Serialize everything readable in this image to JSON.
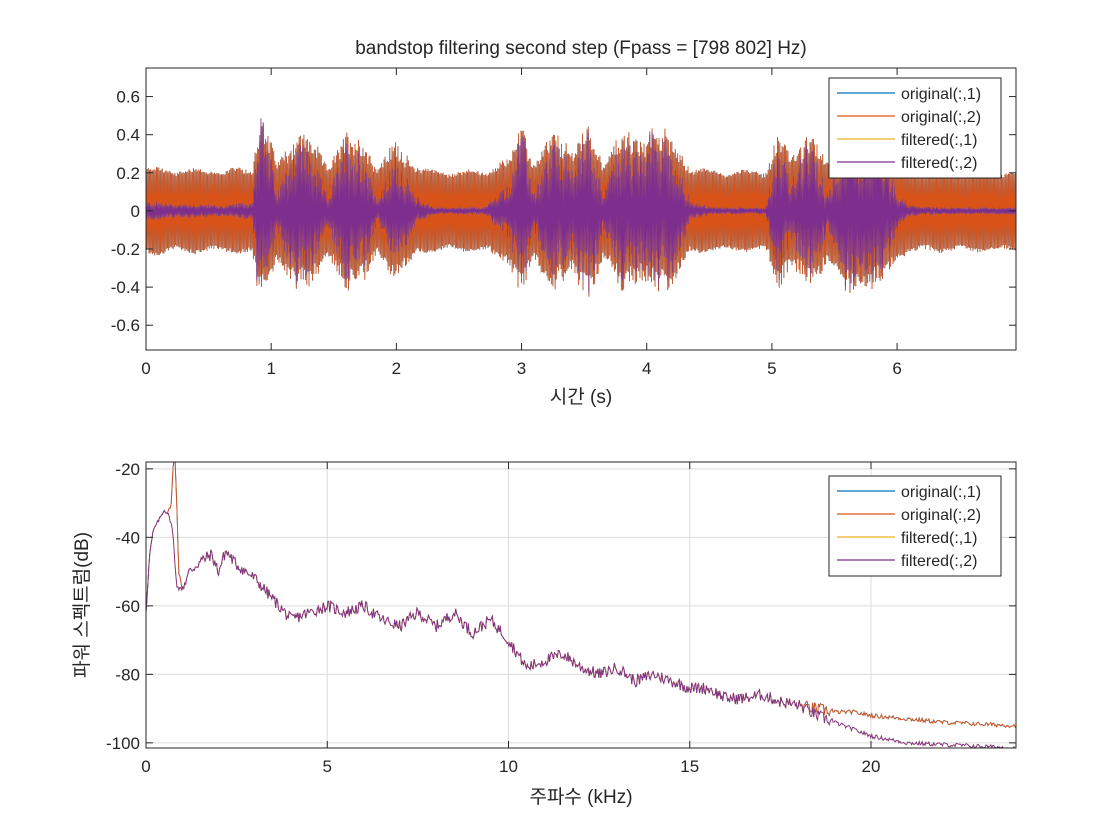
{
  "chart_data": [
    {
      "type": "line",
      "title": "bandstop filtering second step (Fpass = [798 802] Hz)",
      "xlabel": "시간 (s)",
      "ylabel": "",
      "xlim": [
        0,
        6.95
      ],
      "ylim": [
        -0.73,
        0.75
      ],
      "xticks": [
        0,
        1,
        2,
        3,
        4,
        5,
        6
      ],
      "yticks": [
        -0.6,
        -0.4,
        -0.2,
        0,
        0.2,
        0.4,
        0.6
      ],
      "xtick_labels": [
        "0",
        "1",
        "2",
        "3",
        "4",
        "5",
        "6"
      ],
      "ytick_labels": [
        "-0.6",
        "-0.4",
        "-0.2",
        "0",
        "0.2",
        "0.4",
        "0.6"
      ],
      "grid": false,
      "legend_position": "top-right",
      "tone_amplitude": 0.2,
      "series": [
        {
          "name": "original(:,1)",
          "color": "#0072BD"
        },
        {
          "name": "original(:,2)",
          "color": "#D95319"
        },
        {
          "name": "filtered(:,1)",
          "color": "#EDB120"
        },
        {
          "name": "filtered(:,2)",
          "color": "#7E2F8E"
        }
      ],
      "speech_envelope": {
        "t": [
          0,
          0.1,
          0.2,
          0.4,
          0.6,
          0.85,
          0.9,
          0.95,
          1.05,
          1.2,
          1.3,
          1.45,
          1.6,
          1.75,
          1.85,
          2.0,
          2.15,
          2.3,
          2.5,
          2.7,
          2.9,
          3.0,
          3.1,
          3.25,
          3.4,
          3.55,
          3.65,
          3.8,
          3.95,
          4.05,
          4.2,
          4.35,
          4.55,
          4.75,
          4.95,
          5.05,
          5.15,
          5.3,
          5.45,
          5.6,
          5.7,
          5.85,
          6.0,
          6.1,
          6.3,
          6.6,
          6.95
        ],
        "amp": [
          0.05,
          0.05,
          0.04,
          0.04,
          0.03,
          0.05,
          0.55,
          0.45,
          0.1,
          0.4,
          0.35,
          0.08,
          0.38,
          0.3,
          0.06,
          0.3,
          0.08,
          0.02,
          0.02,
          0.02,
          0.15,
          0.45,
          0.1,
          0.38,
          0.25,
          0.45,
          0.1,
          0.4,
          0.3,
          0.45,
          0.35,
          0.05,
          0.02,
          0.02,
          0.02,
          0.4,
          0.15,
          0.38,
          0.1,
          0.45,
          0.3,
          0.4,
          0.1,
          0.03,
          0.02,
          0.02,
          0.02
        ]
      }
    },
    {
      "type": "line",
      "title": "",
      "xlabel": "주파수 (kHz)",
      "ylabel": "파워 스펙트럼(dB)",
      "xlim": [
        0,
        24
      ],
      "ylim": [
        -101.5,
        -18
      ],
      "xticks": [
        0,
        5,
        10,
        15,
        20
      ],
      "yticks": [
        -100,
        -80,
        -60,
        -40,
        -20
      ],
      "xtick_labels": [
        "0",
        "5",
        "10",
        "15",
        "20"
      ],
      "ytick_labels": [
        "-100",
        "-80",
        "-60",
        "-40",
        "-20"
      ],
      "grid": true,
      "legend_position": "top-right",
      "series": [
        {
          "name": "original(:,1)",
          "color": "#0072BD"
        },
        {
          "name": "original(:,2)",
          "color": "#D95319"
        },
        {
          "name": "filtered(:,1)",
          "color": "#EDB120"
        },
        {
          "name": "filtered(:,2)",
          "color": "#7E2F8E"
        }
      ],
      "spectrum_original": {
        "x": [
          0,
          0.1,
          0.2,
          0.3,
          0.4,
          0.5,
          0.6,
          0.7,
          0.75,
          0.8,
          0.85,
          0.9,
          1.0,
          1.2,
          1.5,
          1.8,
          2.0,
          2.2,
          2.5,
          3.0,
          3.5,
          4.0,
          4.5,
          5.0,
          5.5,
          6.0,
          6.5,
          7.0,
          7.5,
          8.0,
          8.5,
          9.0,
          9.5,
          10.0,
          10.5,
          11.0,
          11.5,
          12.0,
          12.5,
          13.0,
          13.5,
          14.0,
          14.5,
          15.0,
          15.5,
          16.0,
          16.5,
          17.0,
          17.5,
          18.0,
          18.5,
          19.0,
          19.5,
          20.0,
          21.0,
          22.0,
          23.0,
          24.0
        ],
        "y": [
          -62,
          -45,
          -38,
          -36,
          -34,
          -32,
          -33,
          -30,
          -19,
          -17,
          -30,
          -50,
          -55,
          -50,
          -47,
          -45,
          -50,
          -44,
          -48,
          -52,
          -58,
          -64,
          -62,
          -60,
          -62,
          -60,
          -64,
          -66,
          -62,
          -66,
          -62,
          -68,
          -64,
          -70,
          -78,
          -76,
          -74,
          -78,
          -80,
          -78,
          -82,
          -80,
          -82,
          -84,
          -84,
          -87,
          -87,
          -86,
          -88,
          -89,
          -90,
          -91,
          -91,
          -92,
          -93,
          -94,
          -94.5,
          -95
        ]
      },
      "spectrum_filtered": {
        "x": [
          0,
          0.1,
          0.2,
          0.3,
          0.4,
          0.5,
          0.6,
          0.7,
          0.75,
          0.8,
          0.85,
          0.9,
          1.0,
          1.2,
          1.5,
          1.8,
          2.0,
          2.2,
          2.5,
          3.0,
          3.5,
          4.0,
          4.5,
          5.0,
          5.5,
          6.0,
          6.5,
          7.0,
          7.5,
          8.0,
          8.5,
          9.0,
          9.5,
          10.0,
          10.5,
          11.0,
          11.5,
          12.0,
          12.5,
          13.0,
          13.5,
          14.0,
          14.5,
          15.0,
          15.5,
          16.0,
          16.5,
          17.0,
          17.5,
          18.0,
          18.5,
          19.0,
          19.5,
          20.0,
          21.0,
          22.0,
          23.0,
          24.0
        ],
        "y": [
          -62,
          -45,
          -38,
          -36,
          -34,
          -32,
          -33,
          -36,
          -40,
          -48,
          -54,
          -55,
          -55,
          -50,
          -47,
          -45,
          -50,
          -44,
          -48,
          -52,
          -58,
          -64,
          -62,
          -60,
          -62,
          -60,
          -64,
          -66,
          -62,
          -66,
          -62,
          -68,
          -64,
          -70,
          -78,
          -76,
          -74,
          -78,
          -80,
          -78,
          -82,
          -80,
          -82,
          -84,
          -84,
          -87,
          -87,
          -86,
          -88,
          -89,
          -92,
          -94,
          -96,
          -98,
          -100,
          -100.5,
          -101,
          -101.5
        ]
      }
    }
  ]
}
